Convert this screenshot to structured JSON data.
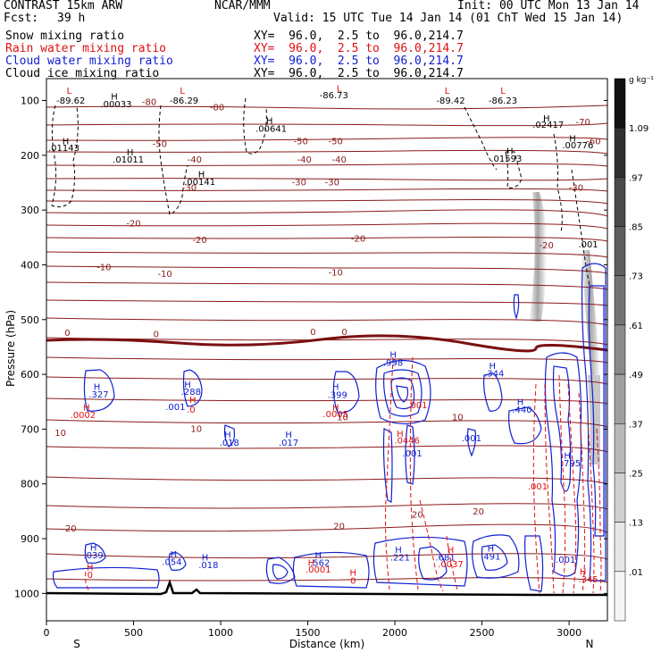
{
  "header": {
    "model": "CONTRAST 15km ARW",
    "org": "NCAR/MMM",
    "init": "Init: 00 UTC Mon 13 Jan 14",
    "fcst_label": "Fcst:",
    "fcst_value": "39 h",
    "valid": "Valid: 15 UTC Tue 14 Jan 14 (01 ChT Wed 15 Jan 14)"
  },
  "fields": [
    {
      "name": "Snow mixing ratio",
      "xy": "XY=  96.0,  2.5 to  96.0,214.7",
      "color": "#000000"
    },
    {
      "name": "Rain water mixing ratio",
      "xy": "XY=  96.0,  2.5 to  96.0,214.7",
      "color": "#e01010"
    },
    {
      "name": "Cloud water mixing ratio",
      "xy": "XY=  96.0,  2.5 to  96.0,214.7",
      "color": "#1020d0"
    },
    {
      "name": "Cloud ice mixing ratio",
      "xy": "XY=  96.0,  2.5 to  96.0,214.7",
      "color": "#000000"
    }
  ],
  "chart_data": {
    "type": "heatmap",
    "xlabel": "Distance (km)",
    "ylabel": "Pressure (hPa)",
    "xlim": [
      0,
      3220
    ],
    "ylim": [
      1050,
      60
    ],
    "y_log": false,
    "xticks": [
      "0",
      "500",
      "1000",
      "1500",
      "2000",
      "2500",
      "3000"
    ],
    "yticks": [
      "100",
      "200",
      "300",
      "400",
      "500",
      "600",
      "700",
      "800",
      "900",
      "1000"
    ],
    "end_labels": {
      "left": "S",
      "right": "N"
    },
    "colorbar": {
      "unit": "g kg⁻¹",
      "ticks": [
        "1.09",
        ".97",
        ".85",
        ".73",
        ".61",
        ".49",
        ".37",
        ".25",
        ".13",
        ".01"
      ],
      "colors": [
        "#111111",
        "#303030",
        "#4a4a4a",
        "#5e5e5e",
        "#737373",
        "#8a8a8a",
        "#a0a0a0",
        "#b8b8b8",
        "#cfcfcf",
        "#e6e6e6",
        "#f6f6f6"
      ]
    },
    "temperature_contours": [
      {
        "label": "-80",
        "p": 120
      },
      {
        "label": "-70",
        "p": 138
      },
      {
        "label": "-60",
        "p": 170
      },
      {
        "label": "-50",
        "p": 200
      },
      {
        "label": "-40",
        "p": 243
      },
      {
        "label": "-30",
        "p": 292
      },
      {
        "label": "-20",
        "p": 355
      },
      {
        "label": "-10",
        "p": 430
      },
      {
        "label": "0",
        "p": 540
      },
      {
        "label": "10",
        "p": 700
      },
      {
        "label": "20",
        "p": 880
      }
    ],
    "labels": [
      {
        "text": "L",
        "x": 130,
        "p": 88,
        "color": "#e01010"
      },
      {
        "text": "-89.62",
        "x": 140,
        "p": 106,
        "color": "#000000"
      },
      {
        "text": "H",
        "x": 390,
        "p": 98,
        "color": "#000000"
      },
      {
        "text": ".00033",
        "x": 400,
        "p": 112,
        "color": "#000000"
      },
      {
        "text": "-80",
        "x": 590,
        "p": 108,
        "color": "#8b1a1a"
      },
      {
        "text": "L",
        "x": 780,
        "p": 88,
        "color": "#e01010"
      },
      {
        "text": "-86.29",
        "x": 790,
        "p": 106,
        "color": "#000000"
      },
      {
        "text": "-80",
        "x": 980,
        "p": 118,
        "color": "#8b1a1a"
      },
      {
        "text": "L",
        "x": 1680,
        "p": 84,
        "color": "#e01010"
      },
      {
        "text": "-86.73",
        "x": 1650,
        "p": 96,
        "color": "#000000"
      },
      {
        "text": "L",
        "x": 2300,
        "p": 88,
        "color": "#e01010"
      },
      {
        "text": "-89.42",
        "x": 2320,
        "p": 106,
        "color": "#000000"
      },
      {
        "text": "L",
        "x": 2620,
        "p": 88,
        "color": "#e01010"
      },
      {
        "text": "-86.23",
        "x": 2620,
        "p": 106,
        "color": "#000000"
      },
      {
        "text": "H",
        "x": 1280,
        "p": 142,
        "color": "#000000"
      },
      {
        "text": ".00641",
        "x": 1290,
        "p": 157,
        "color": "#000000"
      },
      {
        "text": "H",
        "x": 2870,
        "p": 138,
        "color": "#000000"
      },
      {
        "text": ".02417",
        "x": 2880,
        "p": 150,
        "color": "#000000"
      },
      {
        "text": "-70",
        "x": 3080,
        "p": 145,
        "color": "#8b1a1a"
      },
      {
        "text": "H",
        "x": 110,
        "p": 180,
        "color": "#000000"
      },
      {
        "text": ".01143",
        "x": 100,
        "p": 192,
        "color": "#000000"
      },
      {
        "text": "-50",
        "x": 650,
        "p": 185,
        "color": "#8b1a1a"
      },
      {
        "text": "-50",
        "x": 1460,
        "p": 180,
        "color": "#8b1a1a"
      },
      {
        "text": "-50",
        "x": 1660,
        "p": 180,
        "color": "#8b1a1a"
      },
      {
        "text": "H",
        "x": 480,
        "p": 200,
        "color": "#000000"
      },
      {
        "text": ".01011",
        "x": 470,
        "p": 213,
        "color": "#000000"
      },
      {
        "text": "-40",
        "x": 850,
        "p": 213,
        "color": "#8b1a1a"
      },
      {
        "text": "-40",
        "x": 1480,
        "p": 213,
        "color": "#8b1a1a"
      },
      {
        "text": "-40",
        "x": 1680,
        "p": 213,
        "color": "#8b1a1a"
      },
      {
        "text": "H",
        "x": 2660,
        "p": 198,
        "color": "#000000"
      },
      {
        "text": ".01593",
        "x": 2640,
        "p": 212,
        "color": "#000000"
      },
      {
        "text": "H",
        "x": 3020,
        "p": 175,
        "color": "#000000"
      },
      {
        "text": ".00776",
        "x": 3050,
        "p": 187,
        "color": "#000000"
      },
      {
        "text": "-60",
        "x": 3140,
        "p": 180,
        "color": "#8b1a1a"
      },
      {
        "text": "H",
        "x": 890,
        "p": 240,
        "color": "#000000"
      },
      {
        "text": ".00141",
        "x": 880,
        "p": 254,
        "color": "#000000"
      },
      {
        "text": "-30",
        "x": 820,
        "p": 265,
        "color": "#8b1a1a"
      },
      {
        "text": "-30",
        "x": 1450,
        "p": 255,
        "color": "#8b1a1a"
      },
      {
        "text": "-30",
        "x": 1640,
        "p": 255,
        "color": "#8b1a1a"
      },
      {
        "text": "-30",
        "x": 3040,
        "p": 265,
        "color": "#8b1a1a"
      },
      {
        "text": "-20",
        "x": 500,
        "p": 330,
        "color": "#8b1a1a"
      },
      {
        "text": "-20",
        "x": 880,
        "p": 360,
        "color": "#8b1a1a"
      },
      {
        "text": "-20",
        "x": 1790,
        "p": 358,
        "color": "#8b1a1a"
      },
      {
        "text": "-20",
        "x": 2870,
        "p": 370,
        "color": "#8b1a1a"
      },
      {
        "text": ".001",
        "x": 3110,
        "p": 368,
        "color": "#000000"
      },
      {
        "text": "-10",
        "x": 330,
        "p": 410,
        "color": "#8b1a1a"
      },
      {
        "text": "-10",
        "x": 680,
        "p": 422,
        "color": "#8b1a1a"
      },
      {
        "text": "-10",
        "x": 1660,
        "p": 420,
        "color": "#8b1a1a"
      },
      {
        "text": "0",
        "x": 120,
        "p": 530,
        "color": "#8b1a1a"
      },
      {
        "text": "0",
        "x": 630,
        "p": 532,
        "color": "#8b1a1a"
      },
      {
        "text": "0",
        "x": 1530,
        "p": 528,
        "color": "#8b1a1a"
      },
      {
        "text": "0",
        "x": 1710,
        "p": 528,
        "color": "#8b1a1a"
      },
      {
        "text": "H",
        "x": 1990,
        "p": 570,
        "color": "#1020d0"
      },
      {
        "text": ".998",
        "x": 1990,
        "p": 584,
        "color": "#1020d0"
      },
      {
        "text": "H",
        "x": 2560,
        "p": 590,
        "color": "#1020d0"
      },
      {
        "text": ".344",
        "x": 2570,
        "p": 604,
        "color": "#1020d0"
      },
      {
        "text": "H",
        "x": 290,
        "p": 628,
        "color": "#1020d0"
      },
      {
        "text": ".327",
        "x": 300,
        "p": 642,
        "color": "#1020d0"
      },
      {
        "text": "H",
        "x": 810,
        "p": 624,
        "color": "#1020d0"
      },
      {
        "text": ".288",
        "x": 830,
        "p": 637,
        "color": "#1020d0"
      },
      {
        "text": "H",
        "x": 1660,
        "p": 628,
        "color": "#1020d0"
      },
      {
        "text": ".399",
        "x": 1670,
        "p": 643,
        "color": "#1020d0"
      },
      {
        "text": "H",
        "x": 230,
        "p": 666,
        "color": "#e01010"
      },
      {
        "text": ".0002",
        "x": 210,
        "p": 680,
        "color": "#e01010"
      },
      {
        "text": "H",
        "x": 840,
        "p": 652,
        "color": "#e01010"
      },
      {
        "text": ".001",
        "x": 740,
        "p": 665,
        "color": "#1020d0"
      },
      {
        "text": ".0",
        "x": 830,
        "p": 670,
        "color": "#e01010"
      },
      {
        "text": "H",
        "x": 1660,
        "p": 666,
        "color": "#e01010"
      },
      {
        "text": ".0005",
        "x": 1660,
        "p": 678,
        "color": "#e01010"
      },
      {
        "text": ".001",
        "x": 2130,
        "p": 662,
        "color": "#e01010"
      },
      {
        "text": "H",
        "x": 2720,
        "p": 656,
        "color": "#1020d0"
      },
      {
        "text": ".440",
        "x": 2730,
        "p": 670,
        "color": "#1020d0"
      },
      {
        "text": "10",
        "x": 80,
        "p": 712,
        "color": "#8b1a1a"
      },
      {
        "text": "10",
        "x": 860,
        "p": 705,
        "color": "#8b1a1a"
      },
      {
        "text": "10",
        "x": 1700,
        "p": 684,
        "color": "#8b1a1a"
      },
      {
        "text": "10",
        "x": 2360,
        "p": 684,
        "color": "#8b1a1a"
      },
      {
        "text": "H",
        "x": 1040,
        "p": 716,
        "color": "#1020d0"
      },
      {
        "text": ".018",
        "x": 1050,
        "p": 730,
        "color": "#1020d0"
      },
      {
        "text": "H",
        "x": 1390,
        "p": 716,
        "color": "#1020d0"
      },
      {
        "text": ".017",
        "x": 1390,
        "p": 730,
        "color": "#1020d0"
      },
      {
        "text": "H",
        "x": 2030,
        "p": 714,
        "color": "#e01010"
      },
      {
        "text": ".0446",
        "x": 2070,
        "p": 726,
        "color": "#e01010"
      },
      {
        "text": ".001",
        "x": 2440,
        "p": 722,
        "color": "#1020d0"
      },
      {
        "text": ".001",
        "x": 2100,
        "p": 750,
        "color": "#1020d0"
      },
      {
        "text": "H",
        "x": 2990,
        "p": 754,
        "color": "#1020d0"
      },
      {
        "text": ".795",
        "x": 3010,
        "p": 768,
        "color": "#1020d0"
      },
      {
        "text": ".001",
        "x": 2820,
        "p": 810,
        "color": "#e01010"
      },
      {
        "text": "20",
        "x": 2130,
        "p": 862,
        "color": "#8b1a1a"
      },
      {
        "text": "20",
        "x": 2480,
        "p": 856,
        "color": "#8b1a1a"
      },
      {
        "text": "20",
        "x": 140,
        "p": 887,
        "color": "#8b1a1a"
      },
      {
        "text": "20",
        "x": 1680,
        "p": 883,
        "color": "#8b1a1a"
      },
      {
        "text": "H",
        "x": 270,
        "p": 922,
        "color": "#1020d0"
      },
      {
        "text": ".039",
        "x": 270,
        "p": 936,
        "color": "#1020d0"
      },
      {
        "text": "H",
        "x": 730,
        "p": 934,
        "color": "#1020d0"
      },
      {
        "text": ".054",
        "x": 720,
        "p": 948,
        "color": "#1020d0"
      },
      {
        "text": "H",
        "x": 910,
        "p": 940,
        "color": "#1020d0"
      },
      {
        "text": ".018",
        "x": 930,
        "p": 954,
        "color": "#1020d0"
      },
      {
        "text": "H",
        "x": 1560,
        "p": 936,
        "color": "#1020d0"
      },
      {
        "text": ".562",
        "x": 1570,
        "p": 950,
        "color": "#1020d0"
      },
      {
        "text": "H",
        "x": 2020,
        "p": 926,
        "color": "#1020d0"
      },
      {
        "text": ".221",
        "x": 2030,
        "p": 940,
        "color": "#1020d0"
      },
      {
        "text": "H",
        "x": 2320,
        "p": 926,
        "color": "#e01010"
      },
      {
        "text": ".681",
        "x": 2290,
        "p": 940,
        "color": "#1020d0"
      },
      {
        "text": ".0037",
        "x": 2320,
        "p": 952,
        "color": "#e01010"
      },
      {
        "text": "H",
        "x": 2550,
        "p": 924,
        "color": "#1020d0"
      },
      {
        "text": ".491",
        "x": 2550,
        "p": 938,
        "color": "#1020d0"
      },
      {
        "text": ".001",
        "x": 2980,
        "p": 944,
        "color": "#1020d0"
      },
      {
        "text": "H",
        "x": 250,
        "p": 958,
        "color": "#e01010"
      },
      {
        "text": "0",
        "x": 250,
        "p": 972,
        "color": "#e01010"
      },
      {
        "text": "H",
        "x": 1520,
        "p": 950,
        "color": "#e01010"
      },
      {
        "text": ".0001",
        "x": 1560,
        "p": 962,
        "color": "#e01010"
      },
      {
        "text": "H",
        "x": 1760,
        "p": 968,
        "color": "#e01010"
      },
      {
        "text": "0",
        "x": 1760,
        "p": 982,
        "color": "#e01010"
      },
      {
        "text": "H",
        "x": 3080,
        "p": 966,
        "color": "#e01010"
      },
      {
        "text": ".345",
        "x": 3110,
        "p": 980,
        "color": "#e01010"
      }
    ]
  }
}
